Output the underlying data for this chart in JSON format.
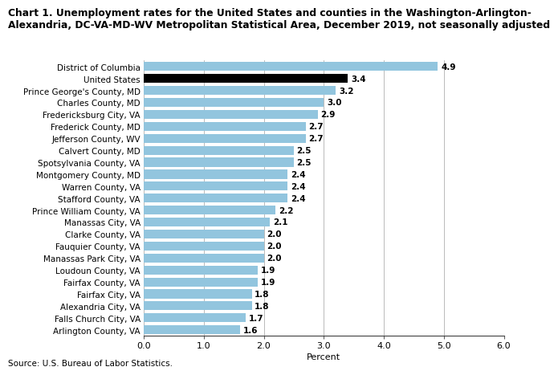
{
  "title_line1": "Chart 1. Unemployment rates for the United States and counties in the Washington-Arlington-",
  "title_line2": "Alexandria, DC-VA-MD-WV Metropolitan Statistical Area, December 2019, not seasonally adjusted",
  "categories": [
    "Arlington County, VA",
    "Falls Church City, VA",
    "Alexandria City, VA",
    "Fairfax City, VA",
    "Fairfax County, VA",
    "Loudoun County, VA",
    "Manassas Park City, VA",
    "Fauquier County, VA",
    "Clarke County, VA",
    "Manassas City, VA",
    "Prince William County, VA",
    "Stafford County, VA",
    "Warren County, VA",
    "Montgomery County, MD",
    "Spotsylvania County, VA",
    "Calvert County, MD",
    "Jefferson County, WV",
    "Frederick County, MD",
    "Fredericksburg City, VA",
    "Charles County, MD",
    "Prince George's County, MD",
    "United States",
    "District of Columbia"
  ],
  "values": [
    1.6,
    1.7,
    1.8,
    1.8,
    1.9,
    1.9,
    2.0,
    2.0,
    2.0,
    2.1,
    2.2,
    2.4,
    2.4,
    2.4,
    2.5,
    2.5,
    2.7,
    2.7,
    2.9,
    3.0,
    3.2,
    3.4,
    4.9
  ],
  "bar_colors": [
    "#92c5de",
    "#92c5de",
    "#92c5de",
    "#92c5de",
    "#92c5de",
    "#92c5de",
    "#92c5de",
    "#92c5de",
    "#92c5de",
    "#92c5de",
    "#92c5de",
    "#92c5de",
    "#92c5de",
    "#92c5de",
    "#92c5de",
    "#92c5de",
    "#92c5de",
    "#92c5de",
    "#92c5de",
    "#92c5de",
    "#92c5de",
    "#000000",
    "#92c5de"
  ],
  "xlabel": "Percent",
  "xlim": [
    0,
    6.0
  ],
  "xticks": [
    0.0,
    1.0,
    2.0,
    3.0,
    4.0,
    5.0,
    6.0
  ],
  "xtick_labels": [
    "0.0",
    "1.0",
    "2.0",
    "3.0",
    "4.0",
    "5.0",
    "6.0"
  ],
  "source": "Source: U.S. Bureau of Labor Statistics.",
  "label_fontsize": 7.5,
  "tick_fontsize": 8.0,
  "value_fontsize": 7.5,
  "title_fontsize": 8.8,
  "background_color": "#ffffff"
}
